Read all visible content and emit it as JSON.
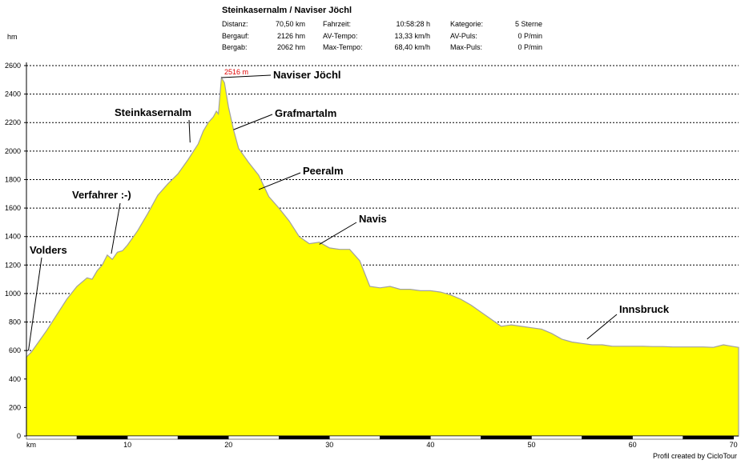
{
  "header": {
    "title": "Steinkasernalm / Naviser Jöchl",
    "stats": [
      {
        "label": "Distanz:",
        "value": "70,50 km"
      },
      {
        "label": "Fahrzeit:",
        "value": "10:58:28 h"
      },
      {
        "label": "Kategorie:",
        "value": "5 Sterne"
      },
      {
        "label": "Bergauf:",
        "value": "2126 hm"
      },
      {
        "label": "AV-Tempo:",
        "value": "13,33 km/h"
      },
      {
        "label": "AV-Puls:",
        "value": "0 P/min"
      },
      {
        "label": "Bergab:",
        "value": "2062 hm"
      },
      {
        "label": "Max-Tempo:",
        "value": "68,40 km/h"
      },
      {
        "label": "Max-Puls:",
        "value": "0 P/min"
      }
    ]
  },
  "footer": {
    "credit": "Profil created by CicloTour"
  },
  "chart_data": {
    "type": "area",
    "ylabel": "hm",
    "xlabel": "km",
    "xlim": [
      0,
      70.5
    ],
    "ylim": [
      0,
      2600
    ],
    "yticks": [
      0,
      200,
      400,
      600,
      800,
      1000,
      1200,
      1400,
      1600,
      1800,
      2000,
      2200,
      2400,
      2600
    ],
    "xticks": [
      10,
      20,
      30,
      40,
      50,
      60,
      70
    ],
    "grid": true,
    "fill_color": "#ffff00",
    "line_color": "#a0a0a0",
    "peak_label": "2516 m",
    "series": [
      {
        "x": [
          0,
          0.5,
          1,
          2,
          3,
          4,
          5,
          6,
          6.5,
          7,
          7.5,
          8,
          8.5,
          9,
          9.5,
          10,
          11,
          12,
          13,
          14,
          15,
          16,
          17,
          17.5,
          18,
          18.5,
          18.8,
          19,
          19.3,
          19.6,
          20,
          20.5,
          21,
          22,
          23,
          24,
          25,
          26,
          27,
          28,
          29,
          30,
          31,
          32,
          33,
          34,
          35,
          36,
          37,
          38,
          39,
          40,
          41,
          42,
          43,
          44,
          45,
          46,
          47,
          48,
          49,
          50,
          51,
          52,
          53,
          54,
          55,
          56,
          57,
          58,
          59,
          60,
          61,
          62,
          63,
          64,
          65,
          66,
          67,
          68,
          69,
          70,
          70.5
        ],
        "y": [
          555,
          590,
          640,
          740,
          850,
          960,
          1050,
          1110,
          1100,
          1160,
          1200,
          1270,
          1240,
          1290,
          1300,
          1340,
          1440,
          1560,
          1690,
          1770,
          1840,
          1940,
          2050,
          2140,
          2200,
          2240,
          2280,
          2260,
          2516,
          2480,
          2310,
          2150,
          2020,
          1920,
          1830,
          1680,
          1600,
          1510,
          1400,
          1350,
          1360,
          1320,
          1310,
          1310,
          1230,
          1050,
          1040,
          1050,
          1030,
          1030,
          1020,
          1020,
          1010,
          990,
          960,
          920,
          870,
          820,
          770,
          780,
          770,
          760,
          750,
          720,
          680,
          660,
          650,
          640,
          640,
          630,
          630,
          630,
          630,
          628,
          628,
          625,
          625,
          625,
          625,
          622,
          640,
          628,
          622
        ]
      }
    ],
    "annotations": [
      {
        "label": "Naviser Jöchl",
        "x": 19.3,
        "y": 2516
      },
      {
        "label": "Grafmartalm",
        "x": 20.5,
        "y": 2150
      },
      {
        "label": "Steinkasernalm",
        "x": 16.2,
        "y": 2060
      },
      {
        "label": "Peeralm",
        "x": 23.0,
        "y": 1730
      },
      {
        "label": "Verfahrer :-)",
        "x": 8.4,
        "y": 1280
      },
      {
        "label": "Navis",
        "x": 29.0,
        "y": 1345
      },
      {
        "label": "Volders",
        "x": 0.2,
        "y": 600
      },
      {
        "label": "Innsbruck",
        "x": 55.5,
        "y": 680
      }
    ]
  }
}
